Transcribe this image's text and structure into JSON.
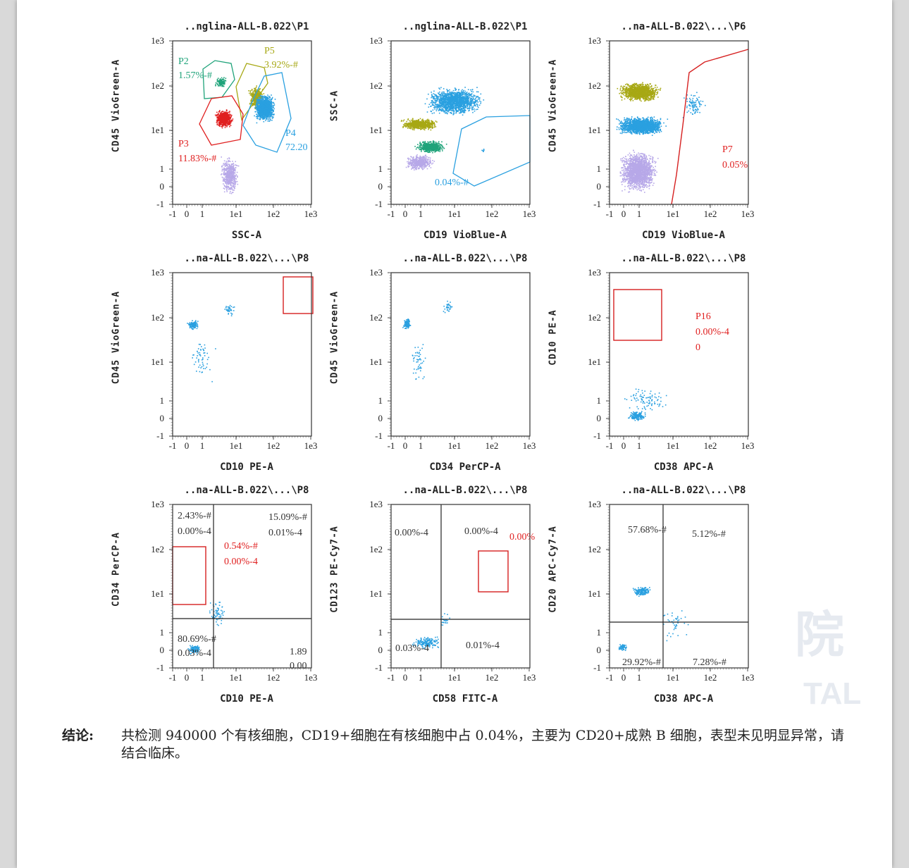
{
  "plots": [
    {
      "title": "..nglina-ALL-B.022\\P1",
      "xlabel": "SSC-A",
      "ylabel": "CD45 VioGreen-A"
    },
    {
      "title": "..nglina-ALL-B.022\\P1",
      "xlabel": "CD19 VioBlue-A",
      "ylabel": "SSC-A"
    },
    {
      "title": "..na-ALL-B.022\\...\\P6",
      "xlabel": "CD19 VioBlue-A",
      "ylabel": "CD45 VioGreen-A"
    },
    {
      "title": "..na-ALL-B.022\\...\\P8",
      "xlabel": "CD10 PE-A",
      "ylabel": "CD45 VioGreen-A"
    },
    {
      "title": "..na-ALL-B.022\\...\\P8",
      "xlabel": "CD34 PerCP-A",
      "ylabel": "CD45 VioGreen-A"
    },
    {
      "title": "..na-ALL-B.022\\...\\P8",
      "xlabel": "CD38 APC-A",
      "ylabel": "CD10 PE-A"
    },
    {
      "title": "..na-ALL-B.022\\...\\P8",
      "xlabel": "CD10 PE-A",
      "ylabel": "CD34 PerCP-A"
    },
    {
      "title": "..na-ALL-B.022\\...\\P8",
      "xlabel": "CD58 FITC-A",
      "ylabel": "CD123 PE-Cy7-A"
    },
    {
      "title": "..na-ALL-B.022\\...\\P8",
      "xlabel": "CD38 APC-A",
      "ylabel": "CD20 APC-Cy7-A"
    }
  ],
  "ticks": {
    "y": [
      "1e3",
      "1e2",
      "1e1",
      "1",
      "0",
      "-1"
    ],
    "x": [
      "-1",
      "0",
      "1",
      "1e1",
      "1e2",
      "1e3"
    ]
  },
  "gates": {
    "p1": [
      {
        "text": "P2",
        "color": "#1fa37a"
      },
      {
        "text": "1.57%-#",
        "color": "#1fa37a"
      },
      {
        "text": "P5",
        "color": "#a7a814"
      },
      {
        "text": "3.92%-#",
        "color": "#a7a814"
      },
      {
        "text": "P3",
        "color": "#e02020"
      },
      {
        "text": "11.83%-#",
        "color": "#e02020"
      },
      {
        "text": "P4",
        "color": "#2aa0e0"
      },
      {
        "text": "72.20",
        "color": "#2aa0e0"
      }
    ],
    "p2": [
      {
        "text": "0.04%-#",
        "color": "#2aa0e0"
      }
    ],
    "p3": [
      {
        "text": "P7",
        "color": "#e02020"
      },
      {
        "text": "0.05%",
        "color": "#e02020"
      }
    ],
    "p6": [
      {
        "text": "P16",
        "color": "#e02020"
      },
      {
        "text": "0.00%-4",
        "color": "#e02020"
      },
      {
        "text": "0",
        "color": "#e02020"
      }
    ],
    "p7": [
      "2.43%-#",
      "0.00%-4",
      "15.09%-#",
      "0.01%-4",
      "0.54%-#",
      "0.00%-4",
      "80.69%-#",
      "0.03%-4",
      "1.89",
      "0.00"
    ],
    "p8": [
      "0.00%-4",
      "0.00%-4",
      "0.00%",
      "0.03%-4",
      "0.01%-4"
    ],
    "p9": [
      "57.68%-#",
      "5.12%-#",
      "29.92%-#",
      "7.28%-#"
    ]
  },
  "conclusion": {
    "label": "结论:",
    "text": "共检测 940000 个有核细胞，CD19+细胞在有核细胞中占 0.04%，主要为 CD20+成熟 B 细胞，表型未见明显异常，请结合临床。"
  },
  "watermark": {
    "text": "TAL"
  },
  "colors": {
    "blue": "#2aa0e0",
    "green": "#1fa37a",
    "olive": "#a7a814",
    "red": "#e02020",
    "lavender": "#b7a8e8",
    "gate_red": "#d62020"
  }
}
